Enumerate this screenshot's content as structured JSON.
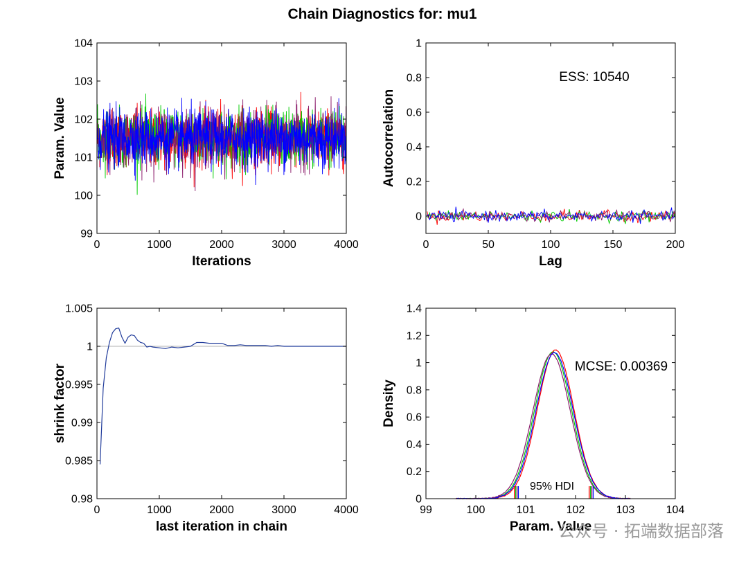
{
  "figure": {
    "title": "Chain Diagnostics for: mu1",
    "watermark": "公众号 · 拓端数据部落"
  },
  "colors": {
    "chains": [
      "#ff0000",
      "#00cc00",
      "#8a1a6a",
      "#0000ff"
    ],
    "axis": "#000000",
    "reference": "#b0b0b0",
    "shrink_line": "#1f3a9a"
  },
  "chart_data": [
    {
      "type": "line",
      "id": "trace",
      "xlabel": "Iterations",
      "ylabel": "Param. Value",
      "xlim": [
        0,
        4000
      ],
      "ylim": [
        99,
        104
      ],
      "xticks": [
        0,
        1000,
        2000,
        3000,
        4000
      ],
      "yticks": [
        99,
        100,
        101,
        102,
        103,
        104
      ],
      "series": [
        {
          "chains": 4,
          "iterations": 4000,
          "mean": 101.5,
          "sd": 0.37,
          "min": 99.8,
          "max": 103.15
        }
      ]
    },
    {
      "type": "line",
      "id": "acf",
      "xlabel": "Lag",
      "ylabel": "Autocorrelation",
      "xlim": [
        0,
        200
      ],
      "ylim": [
        -0.1,
        1
      ],
      "xticks": [
        0,
        50,
        100,
        150,
        200
      ],
      "yticks": [
        0,
        0.2,
        0.4,
        0.6,
        0.8,
        1
      ],
      "annotation": "ESS: 10540",
      "series": [
        {
          "chains": 4,
          "lag_max": 200,
          "noise_level": 0.015
        }
      ]
    },
    {
      "type": "line",
      "id": "shrink",
      "xlabel": "last iteration in chain",
      "ylabel": "shrink factor",
      "xlim": [
        0,
        4000
      ],
      "ylim": [
        0.98,
        1.005
      ],
      "xticks": [
        0,
        1000,
        2000,
        3000,
        4000
      ],
      "yticks": [
        0.98,
        0.985,
        0.99,
        0.995,
        1,
        1.005
      ],
      "yticklabels": [
        "0.98",
        "0.985",
        "0.99",
        "0.995",
        "1",
        "1.005"
      ],
      "reference_y": 1,
      "x": [
        50,
        100,
        150,
        200,
        250,
        300,
        350,
        400,
        450,
        500,
        550,
        600,
        650,
        700,
        750,
        800,
        850,
        900,
        1000,
        1100,
        1200,
        1300,
        1400,
        1500,
        1600,
        1700,
        1800,
        1900,
        2000,
        2100,
        2200,
        2300,
        2400,
        2500,
        2600,
        2700,
        2800,
        2900,
        3000,
        3200,
        3400,
        3600,
        3800,
        4000
      ],
      "y": [
        0.9845,
        0.9945,
        0.9985,
        1.0005,
        1.0018,
        1.0023,
        1.0024,
        1.0012,
        1.0004,
        1.0012,
        1.0015,
        1.0014,
        1.0008,
        1.0005,
        1.0004,
        0.9999,
        1.0,
        0.9999,
        0.9998,
        0.9997,
        0.9999,
        0.9998,
        0.9999,
        1.0,
        1.0005,
        1.0005,
        1.0004,
        1.0004,
        1.0004,
        1.0001,
        1.0001,
        1.0002,
        1.0001,
        1.0001,
        1.0001,
        1.0001,
        1.0,
        1.0001,
        1.0,
        1.0,
        1.0,
        1.0,
        1.0,
        1.0
      ]
    },
    {
      "type": "line",
      "id": "density",
      "xlabel": "Param. Value",
      "ylabel": "Density",
      "xlim": [
        99,
        104
      ],
      "ylim": [
        0,
        1.4
      ],
      "xticks": [
        99,
        100,
        101,
        102,
        103,
        104
      ],
      "yticks": [
        0,
        0.2,
        0.4,
        0.6,
        0.8,
        1,
        1.2,
        1.4
      ],
      "annotation": "MCSE: 0.00369",
      "hdi_label": "95% HDI",
      "hdi": [
        100.8,
        102.3
      ],
      "series": [
        {
          "mu": 101.55,
          "sd": 0.37
        },
        {
          "mu": 101.6,
          "sd": 0.365
        },
        {
          "mu": 101.52,
          "sd": 0.375
        },
        {
          "mu": 101.58,
          "sd": 0.372
        }
      ]
    }
  ]
}
